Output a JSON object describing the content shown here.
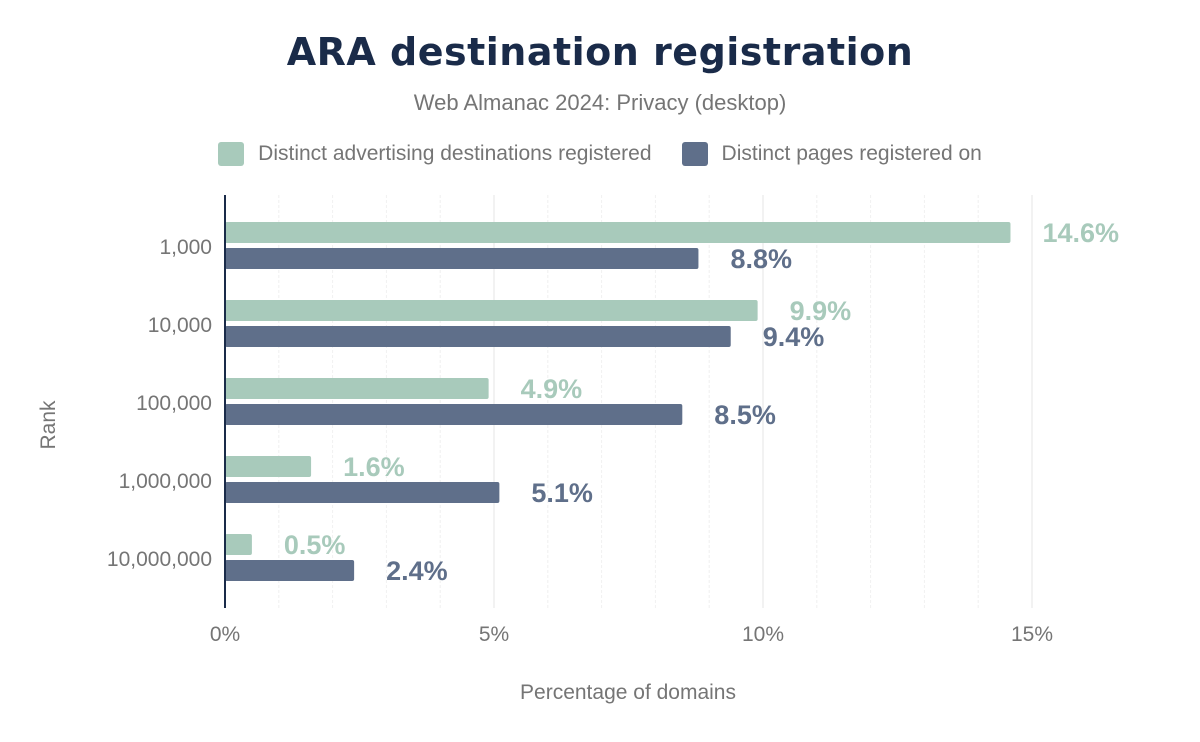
{
  "chart_data": {
    "type": "bar",
    "orientation": "horizontal",
    "title": "ARA destination registration",
    "subtitle": "Web Almanac 2024: Privacy (desktop)",
    "xlabel": "Percentage of domains",
    "ylabel": "Rank",
    "categories": [
      "1,000",
      "10,000",
      "100,000",
      "1,000,000",
      "10,000,000"
    ],
    "series": [
      {
        "name": "Distinct advertising destinations registered",
        "color": "#a8cabb",
        "values": [
          14.6,
          9.9,
          4.9,
          1.6,
          0.5
        ],
        "labels": [
          "14.6%",
          "9.9%",
          "4.9%",
          "1.6%",
          "0.5%"
        ]
      },
      {
        "name": "Distinct pages registered on",
        "color": "#5f6f8a",
        "values": [
          8.8,
          9.4,
          8.5,
          5.1,
          2.4
        ],
        "labels": [
          "8.8%",
          "9.4%",
          "8.5%",
          "5.1%",
          "2.4%"
        ]
      }
    ],
    "xlim": [
      0,
      17
    ],
    "xticks": [
      0,
      5,
      10,
      15
    ],
    "xtick_labels": [
      "0%",
      "5%",
      "10%",
      "15%"
    ],
    "grid": true,
    "legend_position": "top"
  }
}
